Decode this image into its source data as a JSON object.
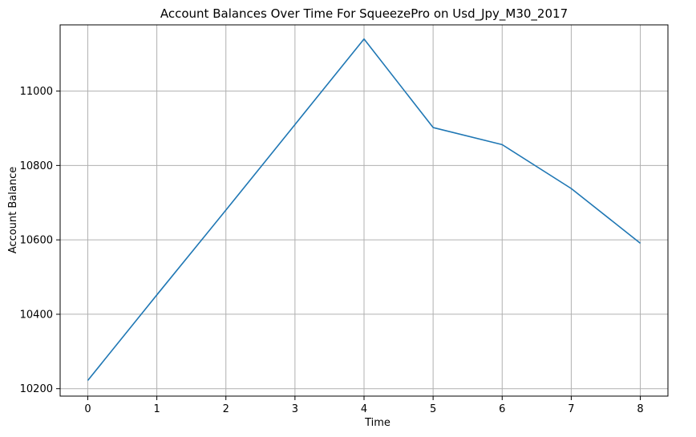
{
  "chart_data": {
    "type": "line",
    "title": "Account Balances Over Time For SqueezePro on Usd_Jpy_M30_2017",
    "xlabel": "Time",
    "ylabel": "Account Balance",
    "x": [
      0,
      1,
      2,
      3,
      4,
      5,
      6,
      7,
      8
    ],
    "series": [
      {
        "values": [
          10222,
          10452,
          10680,
          10910,
          11140,
          10902,
          10856,
          10738,
          10591
        ]
      }
    ],
    "xticks": [
      "0",
      "1",
      "2",
      "3",
      "4",
      "5",
      "6",
      "7",
      "8"
    ],
    "yticks": [
      "10200",
      "10400",
      "10600",
      "10800",
      "11000"
    ],
    "xlim": [
      -0.4,
      8.4
    ],
    "ylim": [
      10180,
      11178
    ],
    "grid": true,
    "colors": {
      "line": "#1f77b4",
      "grid": "#b0b0b0",
      "axis": "#000000"
    }
  }
}
